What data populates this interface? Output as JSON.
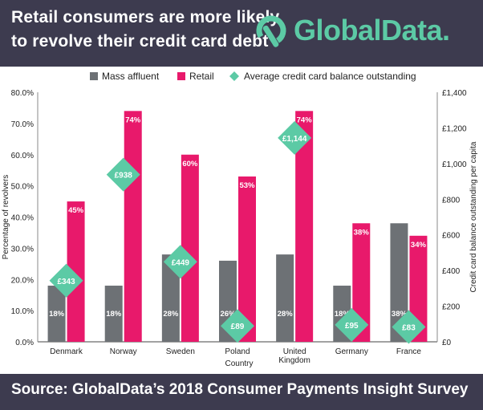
{
  "header": {
    "title_line1": "Retail consumers are more likely",
    "title_line2": "to revolve their credit card debt",
    "logo_text": "GlobalData.",
    "logo_icon": "globaldata-logo-icon"
  },
  "footer": {
    "source": "Source: GlobalData’s 2018 Consumer Payments Insight Survey"
  },
  "colors": {
    "header_bg": "#3d3b4f",
    "mass_affluent": "#6d7175",
    "retail": "#e8196b",
    "balance": "#5ccaa5",
    "logo": "#5ccaa5"
  },
  "chart_data": {
    "type": "bar",
    "categories": [
      "Denmark",
      "Norway",
      "Sweden",
      "Poland",
      "United Kingdom",
      "Germany",
      "France"
    ],
    "category_labels": [
      [
        "Denmark"
      ],
      [
        "Norway"
      ],
      [
        "Sweden"
      ],
      [
        "Poland"
      ],
      [
        "United",
        "Kingdom"
      ],
      [
        "Germany"
      ],
      [
        "France"
      ]
    ],
    "xlabel": "Country",
    "ylabel": "Percentage of revolvers",
    "y2label": "Credit card balance outstanding per capita",
    "ylim": [
      0,
      80
    ],
    "y2lim": [
      0,
      1400
    ],
    "yticks": [
      "0.0%",
      "10.0%",
      "20.0%",
      "30.0%",
      "40.0%",
      "50.0%",
      "60.0%",
      "70.0%",
      "80.0%"
    ],
    "y2ticks": [
      "£0",
      "£200",
      "£400",
      "£600",
      "£800",
      "£1,000",
      "£1,200",
      "£1,400"
    ],
    "legend_position": "top",
    "legend": [
      "Mass affluent",
      "Retail",
      "Average credit card balance outstanding"
    ],
    "series": [
      {
        "name": "Mass affluent",
        "values": [
          18,
          18,
          28,
          26,
          28,
          18,
          38
        ],
        "labels": [
          "18%",
          "18%",
          "28%",
          "26%",
          "28%",
          "18%",
          "38%"
        ]
      },
      {
        "name": "Retail",
        "values": [
          45,
          74,
          60,
          53,
          74,
          38,
          34
        ],
        "labels": [
          "45%",
          "74%",
          "60%",
          "53%",
          "74%",
          "38%",
          "34%"
        ]
      },
      {
        "name": "Average credit card balance outstanding",
        "axis": "right",
        "marker": "diamond",
        "values": [
          343,
          938,
          449,
          89,
          1144,
          95,
          83
        ],
        "labels": [
          "£343",
          "£938",
          "£449",
          "£89",
          "£1,144",
          "£95",
          "£83"
        ]
      }
    ]
  }
}
